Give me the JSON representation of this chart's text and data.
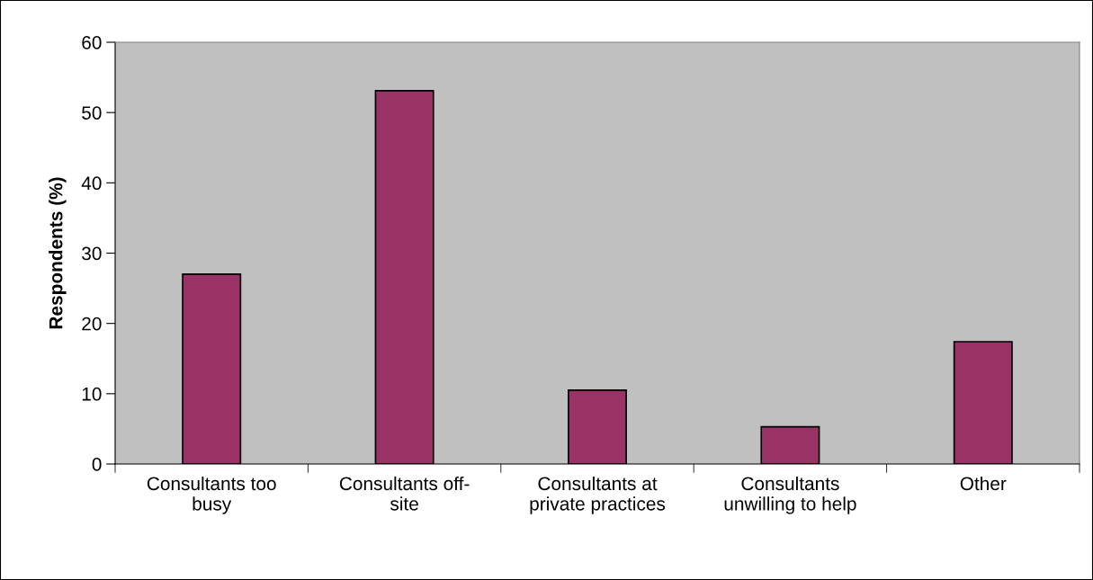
{
  "chart_data": {
    "type": "bar",
    "ylabel": "Respondents (%)",
    "categories": [
      "Consultants too\nbusy",
      "Consultants off-\nsite",
      "Consultants at\nprivate practices",
      "Consultants\nunwilling to help",
      "Other"
    ],
    "values": [
      27.0,
      53.1,
      10.5,
      5.3,
      17.4
    ],
    "color": "#993366",
    "ylim": [
      0,
      60
    ],
    "yticks": [
      0,
      10,
      20,
      30,
      40,
      50,
      60
    ],
    "grid": false,
    "legend": false
  }
}
